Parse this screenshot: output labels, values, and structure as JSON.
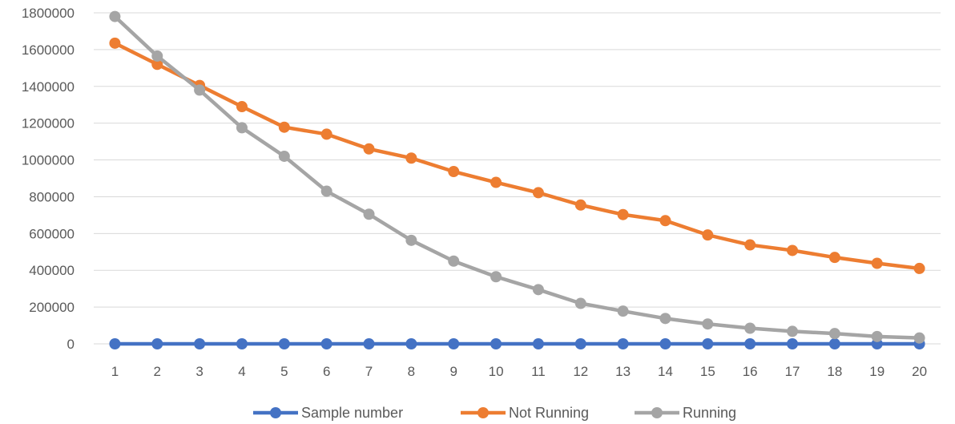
{
  "chart_data": {
    "type": "line",
    "title": "",
    "xlabel": "",
    "ylabel": "",
    "x": [
      "1",
      "2",
      "3",
      "4",
      "5",
      "6",
      "7",
      "8",
      "9",
      "10",
      "11",
      "12",
      "13",
      "14",
      "15",
      "16",
      "17",
      "18",
      "19",
      "20"
    ],
    "ylim": [
      0,
      1800000
    ],
    "yticks": [
      "0",
      "200000",
      "400000",
      "600000",
      "800000",
      "1000000",
      "1200000",
      "1400000",
      "1600000",
      "1800000"
    ],
    "grid": true,
    "legend_position": "bottom",
    "series": [
      {
        "name": "Sample number",
        "color": "#4472C4",
        "values": [
          1,
          2,
          3,
          4,
          5,
          6,
          7,
          8,
          9,
          10,
          11,
          12,
          13,
          14,
          15,
          16,
          17,
          18,
          19,
          20
        ]
      },
      {
        "name": "Not Running",
        "color": "#ED7D31",
        "values": [
          1635000,
          1520000,
          1405000,
          1290000,
          1178000,
          1140000,
          1060000,
          1010000,
          937000,
          878000,
          822000,
          755000,
          703000,
          670000,
          592000,
          538000,
          508000,
          470000,
          438000,
          410000
        ]
      },
      {
        "name": "Running",
        "color": "#A5A5A5",
        "values": [
          1780000,
          1565000,
          1380000,
          1175000,
          1020000,
          830000,
          705000,
          563000,
          450000,
          365000,
          295000,
          220000,
          178000,
          138000,
          108000,
          85000,
          68000,
          56000,
          40000,
          32000
        ]
      }
    ]
  }
}
